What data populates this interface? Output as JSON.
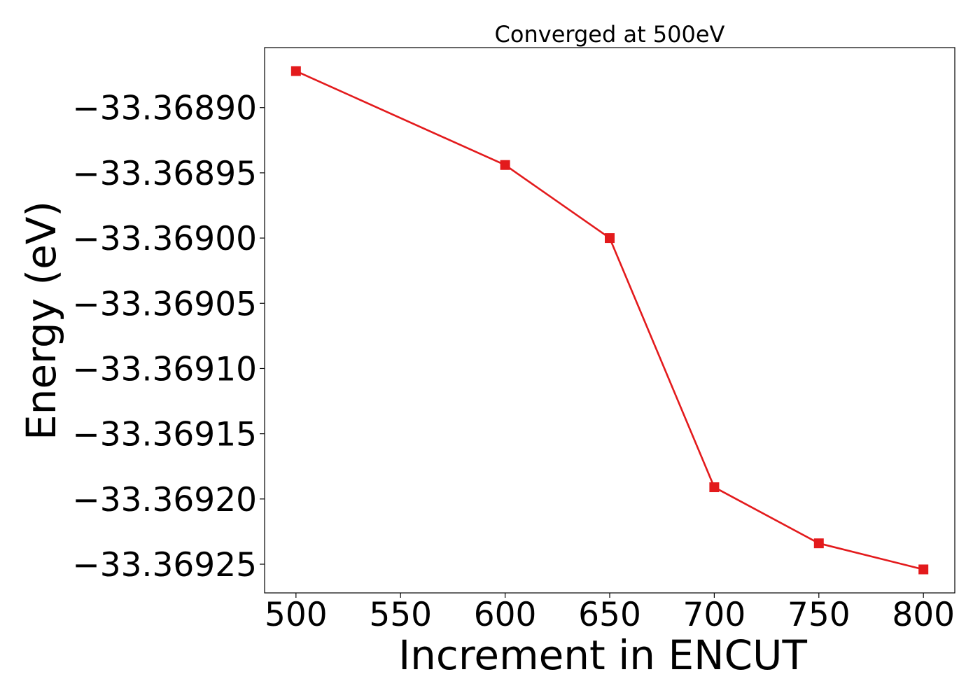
{
  "chart_data": {
    "type": "line",
    "title": "Converged at 500eV",
    "xlabel": "Increment in ENCUT",
    "ylabel": "Energy (eV)",
    "x": [
      500,
      600,
      650,
      700,
      750,
      800
    ],
    "series": [
      {
        "values": [
          -33.368872,
          -33.368944,
          -33.369,
          -33.369191,
          -33.369234,
          -33.369254
        ],
        "color": "#e31a1c",
        "marker": "square"
      }
    ],
    "xlim": [
      485,
      815
    ],
    "ylim": [
      -33.369272,
      -33.368854
    ],
    "xticks": [
      500,
      550,
      600,
      650,
      700,
      750,
      800
    ],
    "xtick_labels": [
      "500",
      "550",
      "600",
      "650",
      "700",
      "750",
      "800"
    ],
    "yticks": [
      -33.3689,
      -33.36895,
      -33.369,
      -33.36905,
      -33.3691,
      -33.36915,
      -33.3692,
      -33.36925
    ],
    "ytick_labels": [
      "−33.36890",
      "−33.36895",
      "−33.36900",
      "−33.36905",
      "−33.36910",
      "−33.36915",
      "−33.36920",
      "−33.36925"
    ],
    "grid": false,
    "legend": false
  }
}
